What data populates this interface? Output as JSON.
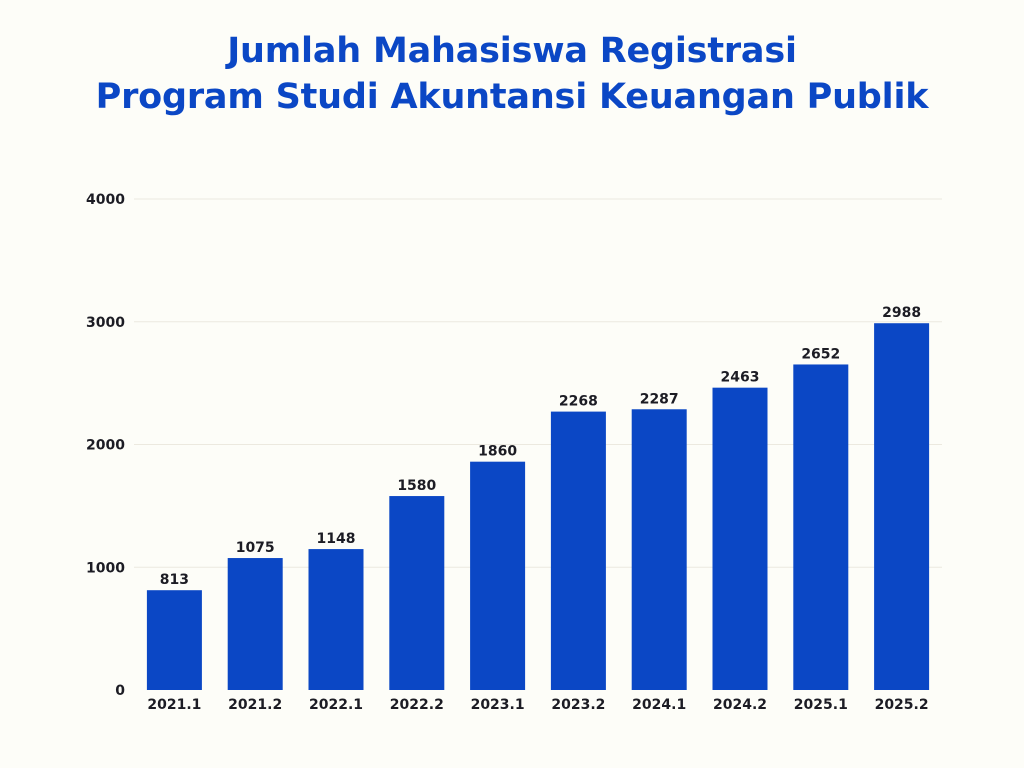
{
  "title_line1": "Jumlah Mahasiswa Registrasi",
  "title_line2": "Program Studi Akuntansi Keuangan Publik",
  "colors": {
    "bar": "#0b47c5",
    "title": "#0b47c5",
    "text": "#1c1c24",
    "grid": "#ece9df",
    "background": "#fdfdf8"
  },
  "chart_data": {
    "type": "bar",
    "title": "Jumlah Mahasiswa Registrasi Program Studi Akuntansi Keuangan Publik",
    "xlabel": "",
    "ylabel": "",
    "categories": [
      "2021.1",
      "2021.2",
      "2022.1",
      "2022.2",
      "2023.1",
      "2023.2",
      "2024.1",
      "2024.2",
      "2025.1",
      "2025.2"
    ],
    "values": [
      813,
      1075,
      1148,
      1580,
      1860,
      2268,
      2287,
      2463,
      2652,
      2988
    ],
    "ylim": [
      0,
      4000
    ],
    "yticks": [
      0,
      1000,
      2000,
      3000,
      4000
    ],
    "grid": true,
    "legend": "none"
  }
}
